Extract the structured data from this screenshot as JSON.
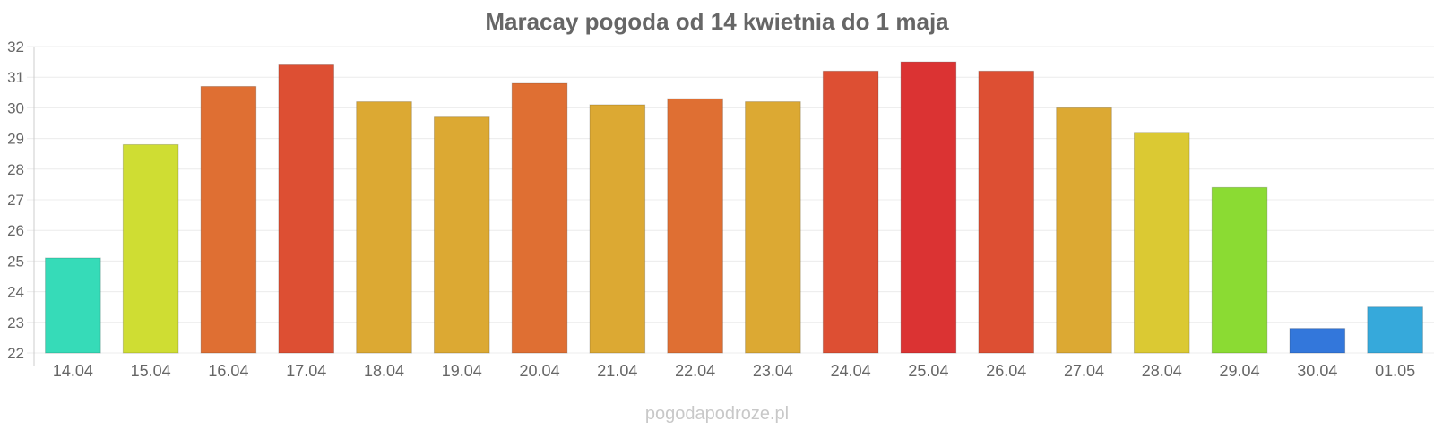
{
  "chart_data": {
    "type": "bar",
    "title": "Maracay pogoda od 14 kwietnia do 1 maja",
    "xlabel": "",
    "ylabel": "",
    "ylim": [
      22,
      32
    ],
    "yticks": [
      22,
      23,
      24,
      25,
      26,
      27,
      28,
      29,
      30,
      31,
      32
    ],
    "grid": true,
    "legend": "none",
    "categories": [
      "14.04",
      "15.04",
      "16.04",
      "17.04",
      "18.04",
      "19.04",
      "20.04",
      "21.04",
      "22.04",
      "23.04",
      "24.04",
      "25.04",
      "26.04",
      "27.04",
      "28.04",
      "29.04",
      "30.04",
      "01.05"
    ],
    "values": [
      25.1,
      28.8,
      30.7,
      31.4,
      30.2,
      29.7,
      30.8,
      30.1,
      30.3,
      30.2,
      31.2,
      31.5,
      31.2,
      30.0,
      29.2,
      27.4,
      22.8,
      23.5
    ],
    "colors": [
      "#36dbb8",
      "#cfdd33",
      "#df6f33",
      "#dd4f33",
      "#dca933",
      "#dca933",
      "#df6f33",
      "#dca933",
      "#df6f33",
      "#dca933",
      "#dd4f33",
      "#db3333",
      "#dd4f33",
      "#dca933",
      "#dbc933",
      "#8bdb33",
      "#3377db",
      "#36a9db"
    ]
  },
  "footer": {
    "watermark": "pogodapodroze.pl"
  }
}
